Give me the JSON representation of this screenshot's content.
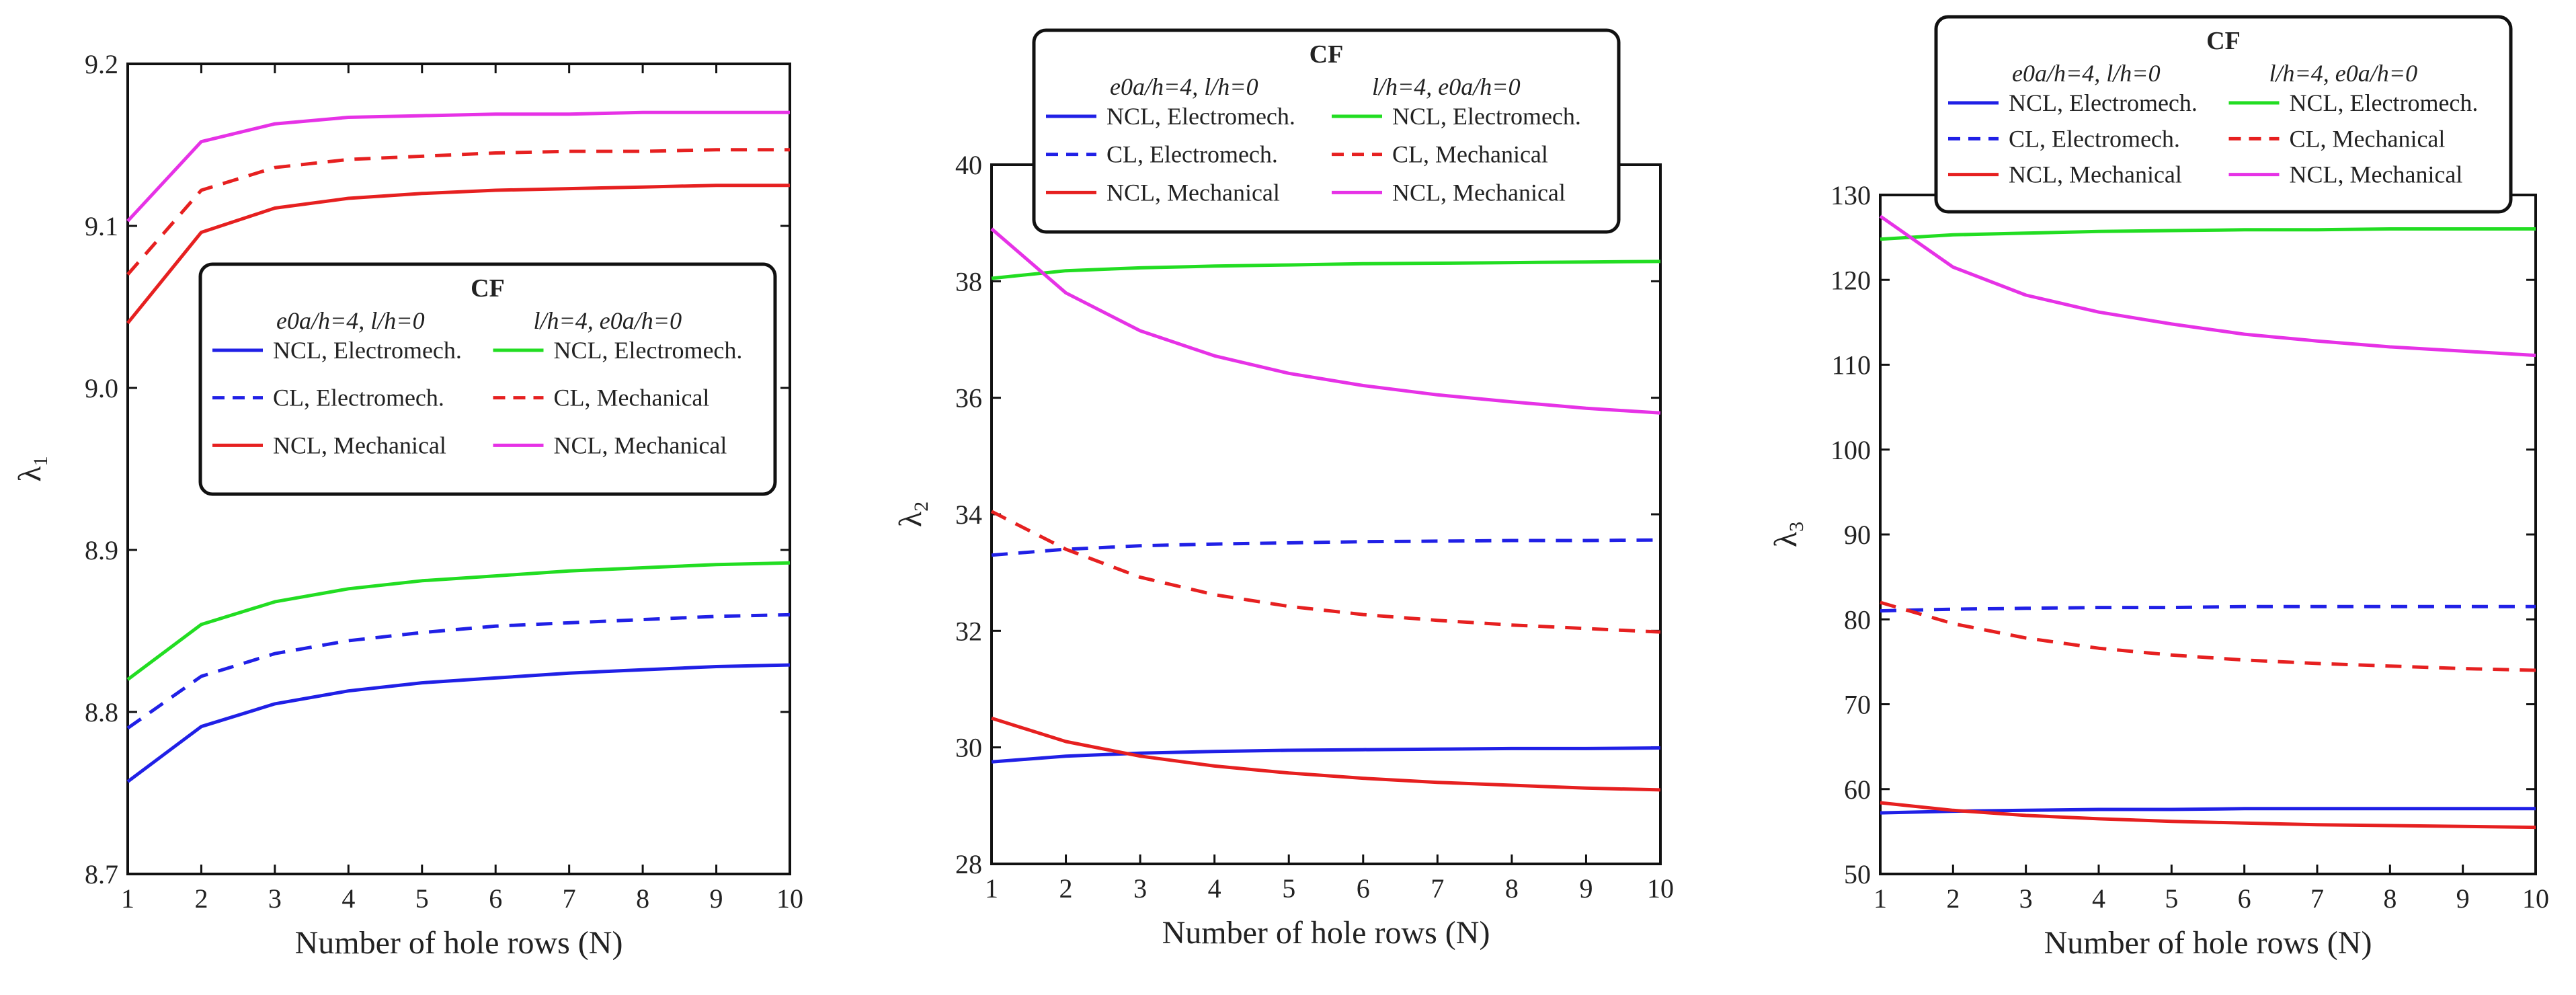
{
  "chart_data": [
    {
      "type": "line",
      "xlabel": "Number of  hole rows  (N)",
      "ylabel": "λ",
      "ylabel_sub": "1",
      "xlim": [
        1,
        10
      ],
      "ylim": [
        8.7,
        9.2
      ],
      "xticks": [
        "1",
        "2",
        "3",
        "4",
        "5",
        "6",
        "7",
        "8",
        "9",
        "10"
      ],
      "yticks": [
        "8.7",
        "8.8",
        "8.9",
        "9.0",
        "9.1",
        "9.2"
      ],
      "ytick_values": [
        8.7,
        8.8,
        8.9,
        9.0,
        9.1,
        9.2
      ],
      "legend": {
        "title": "CF",
        "col1_header": "e0a/h=4, l/h=0",
        "col2_header": "l/h=4, e0a/h=0",
        "entries": [
          "NCL, Electromech.",
          "CL, Electromech.",
          "NCL, Mechanical",
          "NCL, Electromech.",
          "CL, Mechanical",
          "NCL, Mechanical"
        ]
      },
      "x": [
        1,
        2,
        3,
        4,
        5,
        6,
        7,
        8,
        9,
        10
      ],
      "series": [
        {
          "name": "NCL, Electromech. (e0a/h=4, l/h=0)",
          "color": "#2020e6",
          "dash": false,
          "values": [
            8.757,
            8.791,
            8.805,
            8.813,
            8.818,
            8.821,
            8.824,
            8.826,
            8.828,
            8.829
          ]
        },
        {
          "name": "CL, Electromech. (e0a/h=4, l/h=0)",
          "color": "#2020e6",
          "dash": true,
          "values": [
            8.79,
            8.822,
            8.836,
            8.844,
            8.849,
            8.853,
            8.855,
            8.857,
            8.859,
            8.86
          ]
        },
        {
          "name": "NCL, Mechanical (e0a/h=4, l/h=0)",
          "color": "#e62020",
          "dash": false,
          "values": [
            9.04,
            9.096,
            9.111,
            9.117,
            9.12,
            9.122,
            9.123,
            9.124,
            9.125,
            9.125
          ]
        },
        {
          "name": "NCL, Electromech. (l/h=4, e0a/h=0)",
          "color": "#22dd22",
          "dash": false,
          "values": [
            8.82,
            8.854,
            8.868,
            8.876,
            8.881,
            8.884,
            8.887,
            8.889,
            8.891,
            8.892
          ]
        },
        {
          "name": "CL, Mechanical (l/h=4, e0a/h=0)",
          "color": "#e62020",
          "dash": true,
          "values": [
            9.07,
            9.122,
            9.136,
            9.141,
            9.143,
            9.145,
            9.146,
            9.146,
            9.147,
            9.147
          ]
        },
        {
          "name": "NCL, Mechanical (l/h=4, e0a/h=0)",
          "color": "#e632e6",
          "dash": false,
          "values": [
            9.103,
            9.152,
            9.163,
            9.167,
            9.168,
            9.169,
            9.169,
            9.17,
            9.17,
            9.17
          ]
        }
      ]
    },
    {
      "type": "line",
      "xlabel": "Number of  hole rows  (N)",
      "ylabel": "λ",
      "ylabel_sub": "2",
      "xlim": [
        1,
        10
      ],
      "ylim": [
        28,
        40
      ],
      "xticks": [
        "1",
        "2",
        "3",
        "4",
        "5",
        "6",
        "7",
        "8",
        "9",
        "10"
      ],
      "yticks": [
        "28",
        "30",
        "32",
        "34",
        "36",
        "38",
        "40"
      ],
      "ytick_values": [
        28,
        30,
        32,
        34,
        36,
        38,
        40
      ],
      "legend": {
        "title": "CF",
        "col1_header": "e0a/h=4, l/h=0",
        "col2_header": "l/h=4, e0a/h=0",
        "entries": [
          "NCL, Electromech.",
          "CL, Electromech.",
          "NCL, Mechanical",
          "NCL, Electromech.",
          "CL, Mechanical",
          "NCL, Mechanical"
        ]
      },
      "x": [
        1,
        2,
        3,
        4,
        5,
        6,
        7,
        8,
        9,
        10
      ],
      "series": [
        {
          "name": "NCL, Electromech. (e0a/h=4, l/h=0)",
          "color": "#2020e6",
          "dash": false,
          "values": [
            29.75,
            29.85,
            29.9,
            29.93,
            29.95,
            29.96,
            29.97,
            29.98,
            29.98,
            29.99
          ]
        },
        {
          "name": "CL, Electromech. (e0a/h=4, l/h=0)",
          "color": "#2020e6",
          "dash": true,
          "values": [
            33.3,
            33.4,
            33.46,
            33.49,
            33.51,
            33.53,
            33.54,
            33.55,
            33.55,
            33.56
          ]
        },
        {
          "name": "NCL, Mechanical (e0a/h=4, l/h=0)",
          "color": "#e62020",
          "dash": false,
          "values": [
            30.5,
            30.1,
            29.85,
            29.68,
            29.56,
            29.47,
            29.4,
            29.35,
            29.3,
            29.27
          ]
        },
        {
          "name": "NCL, Electromech. (l/h=4, e0a/h=0)",
          "color": "#22dd22",
          "dash": false,
          "values": [
            38.05,
            38.18,
            38.23,
            38.26,
            38.28,
            38.3,
            38.31,
            38.32,
            38.33,
            38.34
          ]
        },
        {
          "name": "CL, Mechanical (l/h=4, e0a/h=0)",
          "color": "#e62020",
          "dash": true,
          "values": [
            34.05,
            33.4,
            32.92,
            32.62,
            32.42,
            32.28,
            32.18,
            32.1,
            32.04,
            31.98
          ]
        },
        {
          "name": "NCL, Mechanical (l/h=4, e0a/h=0)",
          "color": "#e632e6",
          "dash": false,
          "values": [
            38.9,
            37.8,
            37.15,
            36.72,
            36.42,
            36.21,
            36.05,
            35.93,
            35.82,
            35.74
          ]
        }
      ]
    },
    {
      "type": "line",
      "xlabel": "Number of  hole rows  (N)",
      "ylabel": "λ",
      "ylabel_sub": "3",
      "xlim": [
        1,
        10
      ],
      "ylim": [
        50,
        130
      ],
      "xticks": [
        "1",
        "2",
        "3",
        "4",
        "5",
        "6",
        "7",
        "8",
        "9",
        "10"
      ],
      "yticks": [
        "50",
        "60",
        "70",
        "80",
        "90",
        "100",
        "110",
        "120",
        "130"
      ],
      "ytick_values": [
        50,
        60,
        70,
        80,
        90,
        100,
        110,
        120,
        130
      ],
      "legend": {
        "title": "CF",
        "col1_header": "e0a/h=4, l/h=0",
        "col2_header": "l/h=4, e0a/h=0",
        "entries": [
          "NCL, Electromech.",
          "CL, Electromech.",
          "NCL, Mechanical",
          "NCL, Electromech.",
          "CL, Mechanical",
          "NCL, Mechanical"
        ]
      },
      "x": [
        1,
        2,
        3,
        4,
        5,
        6,
        7,
        8,
        9,
        10
      ],
      "series": [
        {
          "name": "NCL, Electromech. (e0a/h=4, l/h=0)",
          "color": "#2020e6",
          "dash": false,
          "values": [
            57.2,
            57.4,
            57.5,
            57.6,
            57.6,
            57.7,
            57.7,
            57.7,
            57.7,
            57.7
          ]
        },
        {
          "name": "CL, Electromech. (e0a/h=4, l/h=0)",
          "color": "#2020e6",
          "dash": true,
          "values": [
            81.0,
            81.2,
            81.3,
            81.4,
            81.4,
            81.5,
            81.5,
            81.5,
            81.5,
            81.5
          ]
        },
        {
          "name": "NCL, Mechanical (e0a/h=4, l/h=0)",
          "color": "#e62020",
          "dash": false,
          "values": [
            58.4,
            57.5,
            56.9,
            56.5,
            56.2,
            56.0,
            55.8,
            55.7,
            55.6,
            55.5
          ]
        },
        {
          "name": "NCL, Electromech. (l/h=4, e0a/h=0)",
          "color": "#22dd22",
          "dash": false,
          "values": [
            124.8,
            125.3,
            125.5,
            125.7,
            125.8,
            125.9,
            125.9,
            126.0,
            126.0,
            126.0
          ]
        },
        {
          "name": "CL, Mechanical (l/h=4, e0a/h=0)",
          "color": "#e62020",
          "dash": true,
          "values": [
            82.0,
            79.5,
            77.8,
            76.6,
            75.8,
            75.2,
            74.8,
            74.5,
            74.2,
            74.0
          ]
        },
        {
          "name": "NCL, Mechanical (l/h=4, e0a/h=0)",
          "color": "#e632e6",
          "dash": false,
          "values": [
            127.5,
            121.5,
            118.2,
            116.2,
            114.8,
            113.6,
            112.8,
            112.1,
            111.6,
            111.1
          ]
        }
      ]
    }
  ]
}
